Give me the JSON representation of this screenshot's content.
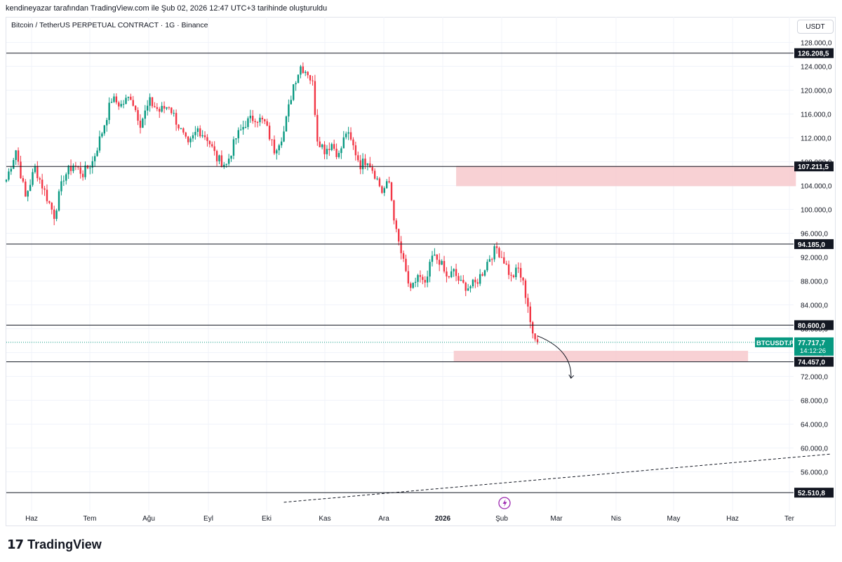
{
  "header": {
    "attribution": "kendineyazar tarafından TradingView.com ile Şub 02, 2026 12:47 UTC+3 tarihinde oluşturuldu"
  },
  "symbol": {
    "title": "Bitcoin / TetherUS PERPETUAL CONTRACT · 1G · Binance",
    "currency": "USDT"
  },
  "brand": {
    "name": "TradingView",
    "mark": "17"
  },
  "colors": {
    "up": "#089981",
    "down": "#f23645",
    "zone": "#f7c9cc",
    "line": "#131722",
    "dashed_trend": "#131722",
    "price_tag": "#089981"
  },
  "chart_data": {
    "type": "candlestick",
    "title": "Bitcoin / TetherUS PERPETUAL CONTRACT · 1G · Binance",
    "ylim": [
      49000,
      130000
    ],
    "y_ticks": [
      128000,
      124000,
      120000,
      116000,
      112000,
      108000,
      104000,
      100000,
      96000,
      92000,
      88000,
      84000,
      80000,
      76000,
      72000,
      68000,
      64000,
      60000,
      56000
    ],
    "y_tick_labels": [
      "128.000,0",
      "124.000,0",
      "120.000,0",
      "116.000,0",
      "112.000,0",
      "108.000,0",
      "104.000,0",
      "100.000,0",
      "96.000,0",
      "92.000,0",
      "88.000,0",
      "84.000,0",
      "80.000,0",
      "76.000,0",
      "72.000,0",
      "68.000,0",
      "64.000,0",
      "60.000,0",
      "56.000,0"
    ],
    "x_ticks": [
      "Haz",
      "Tem",
      "Ağu",
      "Eyl",
      "Eki",
      "Kas",
      "Ara",
      "2026",
      "Şub",
      "Mar",
      "Nis",
      "May",
      "Haz",
      "Ter"
    ],
    "grid": true,
    "price_path": [
      [
        0,
        105000
      ],
      [
        4,
        110000
      ],
      [
        8,
        102000
      ],
      [
        12,
        107000
      ],
      [
        16,
        103000
      ],
      [
        20,
        99000
      ],
      [
        24,
        105500
      ],
      [
        28,
        107500
      ],
      [
        32,
        106000
      ],
      [
        36,
        108000
      ],
      [
        40,
        113000
      ],
      [
        44,
        118500
      ],
      [
        48,
        117500
      ],
      [
        52,
        119000
      ],
      [
        56,
        114500
      ],
      [
        60,
        118000
      ],
      [
        64,
        116500
      ],
      [
        68,
        117500
      ],
      [
        72,
        114000
      ],
      [
        76,
        110500
      ],
      [
        80,
        113500
      ],
      [
        84,
        112000
      ],
      [
        88,
        108500
      ],
      [
        92,
        107500
      ],
      [
        96,
        112000
      ],
      [
        100,
        114500
      ],
      [
        104,
        115500
      ],
      [
        108,
        114500
      ],
      [
        112,
        110000
      ],
      [
        116,
        113000
      ],
      [
        120,
        121000
      ],
      [
        123,
        124000
      ],
      [
        126,
        123000
      ],
      [
        128,
        121000
      ],
      [
        130,
        112000
      ],
      [
        133,
        110000
      ],
      [
        136,
        111000
      ],
      [
        139,
        109000
      ],
      [
        142,
        113000
      ],
      [
        145,
        110500
      ],
      [
        148,
        107500
      ],
      [
        151,
        108500
      ],
      [
        154,
        106000
      ],
      [
        157,
        103000
      ],
      [
        160,
        104500
      ],
      [
        163,
        96000
      ],
      [
        166,
        91000
      ],
      [
        169,
        86000
      ],
      [
        172,
        89000
      ],
      [
        175,
        87000
      ],
      [
        178,
        92000
      ],
      [
        181,
        91500
      ],
      [
        184,
        88500
      ],
      [
        187,
        89500
      ],
      [
        190,
        87500
      ],
      [
        193,
        87000
      ],
      [
        196,
        87500
      ],
      [
        199,
        89500
      ],
      [
        202,
        92000
      ],
      [
        205,
        93500
      ],
      [
        208,
        91500
      ],
      [
        211,
        88500
      ],
      [
        214,
        90000
      ],
      [
        216,
        87500
      ],
      [
        218,
        84000
      ],
      [
        220,
        78500
      ],
      [
        222,
        77717.7
      ]
    ],
    "last_index": 222,
    "horizontal_levels": [
      126208.5,
      107211.5,
      94185.0,
      80600.0,
      74457.0,
      52510.8
    ],
    "horizontal_level_labels": [
      "126.208,5",
      "107.211,5",
      "94.185,0",
      "80.600,0",
      "74.457,0",
      "52.510,8"
    ],
    "zones": [
      {
        "from_index": 188,
        "to_index": 330,
        "low": 103900,
        "high": 107300
      },
      {
        "from_index": 187,
        "to_index": 310,
        "low": 74500,
        "high": 76300
      }
    ],
    "trendline": {
      "start": [
        116,
        50900
      ],
      "end": [
        345,
        59000
      ],
      "style": "dashed"
    },
    "arrow_annotation": {
      "start": [
        222,
        78800
      ],
      "end": [
        236,
        71700
      ]
    },
    "last_price": {
      "symbol": "BTCUSDT.P",
      "value": "77.717,7",
      "value_num": 77717.7,
      "countdown": "14:12:26"
    }
  }
}
